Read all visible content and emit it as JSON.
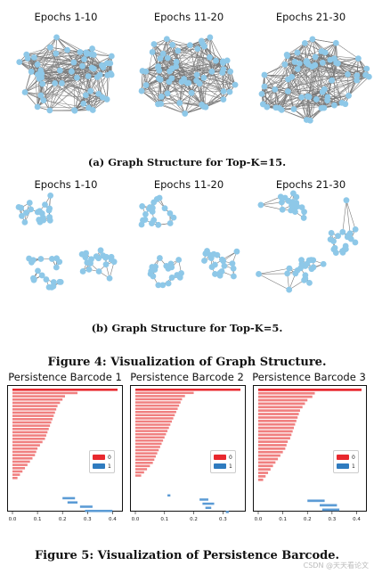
{
  "figure4": {
    "row_a_titles": [
      "Epochs 1-10",
      "Epochs 11-20",
      "Epochs 21-30"
    ],
    "row_b_titles": [
      "Epochs 1-10",
      "Epochs 11-20",
      "Epochs 21-30"
    ],
    "caption_a": "(a) Graph Structure for Top-K=15.",
    "caption_b": "(b) Graph Structure for Top-K=5.",
    "caption": "Figure 4: Visualization of Graph Structure.",
    "colors": {
      "node": "#8ec8e8",
      "edge": "#7a7a7a"
    }
  },
  "figure5": {
    "caption": "Figure 5: Visualization of Persistence Barcode.",
    "colors": {
      "dim0": "#e8282e",
      "dim1": "#2f7bbf",
      "dim0_bar": "#f08080",
      "dim1_bar": "#5b9bd5"
    },
    "legend_labels": [
      "0",
      "1"
    ]
  },
  "chart_data": [
    {
      "type": "bar",
      "title": "Persistence Barcode 1",
      "xlim": [
        0.0,
        0.42
      ],
      "xticks": [
        "0.0",
        "0.1",
        "0.2",
        "0.3",
        "0.4"
      ],
      "xtick_values": [
        0.0,
        0.1,
        0.2,
        0.3,
        0.4
      ],
      "series": [
        {
          "name": "0",
          "intervals": [
            [
              0,
              0.42
            ],
            [
              0,
              0.26
            ],
            [
              0,
              0.21
            ],
            [
              0,
              0.2
            ],
            [
              0,
              0.19
            ],
            [
              0,
              0.18
            ],
            [
              0,
              0.175
            ],
            [
              0,
              0.17
            ],
            [
              0,
              0.165
            ],
            [
              0,
              0.16
            ],
            [
              0,
              0.155
            ],
            [
              0,
              0.15
            ],
            [
              0,
              0.145
            ],
            [
              0,
              0.14
            ],
            [
              0,
              0.135
            ],
            [
              0,
              0.13
            ],
            [
              0,
              0.12
            ],
            [
              0,
              0.11
            ],
            [
              0,
              0.1
            ],
            [
              0,
              0.095
            ],
            [
              0,
              0.09
            ],
            [
              0,
              0.08
            ],
            [
              0,
              0.07
            ],
            [
              0,
              0.06
            ],
            [
              0,
              0.05
            ],
            [
              0,
              0.04
            ],
            [
              0,
              0.03
            ],
            [
              0,
              0.02
            ]
          ]
        },
        {
          "name": "1",
          "intervals": [
            [
              0.2,
              0.25
            ],
            [
              0.22,
              0.26
            ],
            [
              0.27,
              0.32
            ],
            [
              0.29,
              0.4
            ]
          ]
        }
      ]
    },
    {
      "type": "bar",
      "title": "Persistence Barcode 2",
      "xlim": [
        0.0,
        0.36
      ],
      "xticks": [
        "0.0",
        "0.1",
        "0.2",
        "0.3"
      ],
      "xtick_values": [
        0.0,
        0.1,
        0.2,
        0.3
      ],
      "series": [
        {
          "name": "0",
          "intervals": [
            [
              0,
              0.36
            ],
            [
              0,
              0.2
            ],
            [
              0,
              0.17
            ],
            [
              0,
              0.16
            ],
            [
              0,
              0.155
            ],
            [
              0,
              0.15
            ],
            [
              0,
              0.145
            ],
            [
              0,
              0.14
            ],
            [
              0,
              0.135
            ],
            [
              0,
              0.13
            ],
            [
              0,
              0.125
            ],
            [
              0,
              0.12
            ],
            [
              0,
              0.115
            ],
            [
              0,
              0.11
            ],
            [
              0,
              0.105
            ],
            [
              0,
              0.1
            ],
            [
              0,
              0.095
            ],
            [
              0,
              0.09
            ],
            [
              0,
              0.085
            ],
            [
              0,
              0.08
            ],
            [
              0,
              0.075
            ],
            [
              0,
              0.07
            ],
            [
              0,
              0.065
            ],
            [
              0,
              0.06
            ],
            [
              0,
              0.05
            ],
            [
              0,
              0.04
            ],
            [
              0,
              0.03
            ],
            [
              0,
              0.02
            ]
          ]
        },
        {
          "name": "1",
          "intervals": [
            [
              0.11,
              0.12
            ],
            [
              0.22,
              0.25
            ],
            [
              0.23,
              0.27
            ],
            [
              0.24,
              0.26
            ],
            [
              0.31,
              0.32
            ]
          ]
        }
      ]
    },
    {
      "type": "bar",
      "title": "Persistence Barcode 3",
      "xlim": [
        0.0,
        0.42
      ],
      "xticks": [
        "0.0",
        "0.1",
        "0.2",
        "0.3",
        "0.4"
      ],
      "xtick_values": [
        0.0,
        0.1,
        0.2,
        0.3,
        0.4
      ],
      "series": [
        {
          "name": "0",
          "intervals": [
            [
              0,
              0.42
            ],
            [
              0,
              0.23
            ],
            [
              0,
              0.22
            ],
            [
              0,
              0.2
            ],
            [
              0,
              0.19
            ],
            [
              0,
              0.18
            ],
            [
              0,
              0.17
            ],
            [
              0,
              0.165
            ],
            [
              0,
              0.16
            ],
            [
              0,
              0.155
            ],
            [
              0,
              0.15
            ],
            [
              0,
              0.145
            ],
            [
              0,
              0.14
            ],
            [
              0,
              0.135
            ],
            [
              0,
              0.13
            ],
            [
              0,
              0.12
            ],
            [
              0,
              0.115
            ],
            [
              0,
              0.11
            ],
            [
              0,
              0.1
            ],
            [
              0,
              0.09
            ],
            [
              0,
              0.08
            ],
            [
              0,
              0.07
            ],
            [
              0,
              0.06
            ],
            [
              0,
              0.05
            ],
            [
              0,
              0.04
            ],
            [
              0,
              0.03
            ],
            [
              0,
              0.02
            ]
          ]
        },
        {
          "name": "1",
          "intervals": [
            [
              0.2,
              0.27
            ],
            [
              0.25,
              0.32
            ],
            [
              0.26,
              0.33
            ]
          ]
        }
      ]
    }
  ],
  "watermark": "CSDN @天天看论文"
}
